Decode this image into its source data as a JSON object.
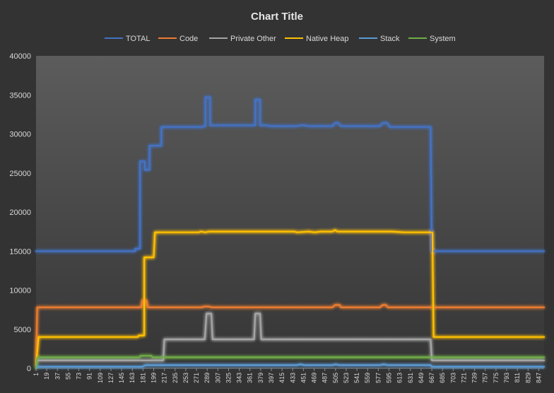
{
  "chart_data": {
    "type": "line",
    "title": "Chart Title",
    "legend_position": "top",
    "grid": false,
    "ylim": [
      0,
      40000
    ],
    "xlim": [
      1,
      856
    ],
    "y_ticks": [
      0,
      5000,
      10000,
      15000,
      20000,
      25000,
      30000,
      35000,
      40000
    ],
    "x_ticks": [
      1,
      19,
      37,
      55,
      73,
      91,
      109,
      127,
      145,
      163,
      181,
      199,
      217,
      235,
      253,
      271,
      289,
      307,
      325,
      343,
      361,
      379,
      397,
      415,
      433,
      451,
      469,
      487,
      505,
      523,
      541,
      559,
      577,
      595,
      613,
      631,
      649,
      667,
      685,
      703,
      721,
      739,
      757,
      775,
      793,
      811,
      829,
      847
    ],
    "series": [
      {
        "name": "TOTAL",
        "color": "#4472c4",
        "points": [
          [
            1,
            15000
          ],
          [
            168,
            15000
          ],
          [
            168,
            15300
          ],
          [
            176,
            15300
          ],
          [
            176,
            26500
          ],
          [
            184,
            26500
          ],
          [
            184,
            25400
          ],
          [
            192,
            25400
          ],
          [
            192,
            28500
          ],
          [
            212,
            28500
          ],
          [
            212,
            30900
          ],
          [
            280,
            30900
          ],
          [
            286,
            31000
          ],
          [
            286,
            34700
          ],
          [
            294,
            34700
          ],
          [
            294,
            31100
          ],
          [
            370,
            31100
          ],
          [
            370,
            34400
          ],
          [
            378,
            34400
          ],
          [
            378,
            31100
          ],
          [
            390,
            31100
          ],
          [
            394,
            31000
          ],
          [
            440,
            31000
          ],
          [
            446,
            31100
          ],
          [
            452,
            31100
          ],
          [
            460,
            31000
          ],
          [
            500,
            31000
          ],
          [
            504,
            31400
          ],
          [
            510,
            31400
          ],
          [
            514,
            31000
          ],
          [
            580,
            31000
          ],
          [
            584,
            31400
          ],
          [
            592,
            31400
          ],
          [
            596,
            30900
          ],
          [
            665,
            30900
          ],
          [
            667,
            15000
          ],
          [
            856,
            15000
          ]
        ]
      },
      {
        "name": "Code",
        "color": "#ed7d31",
        "points": [
          [
            1,
            200
          ],
          [
            3,
            7800
          ],
          [
            178,
            7800
          ],
          [
            180,
            8700
          ],
          [
            187,
            8700
          ],
          [
            189,
            7800
          ],
          [
            280,
            7800
          ],
          [
            284,
            7900
          ],
          [
            292,
            7900
          ],
          [
            296,
            7800
          ],
          [
            500,
            7800
          ],
          [
            504,
            8100
          ],
          [
            512,
            8100
          ],
          [
            514,
            7800
          ],
          [
            580,
            7800
          ],
          [
            584,
            8100
          ],
          [
            590,
            8100
          ],
          [
            593,
            7800
          ],
          [
            856,
            7800
          ]
        ]
      },
      {
        "name": "Private Other",
        "color": "#a5a5a5",
        "points": [
          [
            1,
            0
          ],
          [
            3,
            1000
          ],
          [
            215,
            1000
          ],
          [
            217,
            3700
          ],
          [
            285,
            3700
          ],
          [
            288,
            7000
          ],
          [
            296,
            7000
          ],
          [
            298,
            3700
          ],
          [
            368,
            3700
          ],
          [
            370,
            7000
          ],
          [
            378,
            7000
          ],
          [
            380,
            3700
          ],
          [
            665,
            3700
          ],
          [
            667,
            1000
          ],
          [
            856,
            1000
          ]
        ]
      },
      {
        "name": "Native Heap",
        "color": "#ffc000",
        "points": [
          [
            1,
            400
          ],
          [
            5,
            4000
          ],
          [
            172,
            4000
          ],
          [
            174,
            4200
          ],
          [
            183,
            4200
          ],
          [
            183,
            14200
          ],
          [
            199,
            14200
          ],
          [
            201,
            17400
          ],
          [
            275,
            17400
          ],
          [
            278,
            17500
          ],
          [
            286,
            17400
          ],
          [
            292,
            17500
          ],
          [
            436,
            17500
          ],
          [
            440,
            17400
          ],
          [
            460,
            17500
          ],
          [
            470,
            17400
          ],
          [
            480,
            17500
          ],
          [
            500,
            17500
          ],
          [
            504,
            17700
          ],
          [
            508,
            17500
          ],
          [
            600,
            17500
          ],
          [
            620,
            17400
          ],
          [
            668,
            17400
          ],
          [
            670,
            4000
          ],
          [
            856,
            4000
          ]
        ]
      },
      {
        "name": "Stack",
        "color": "#5b9bd5",
        "points": [
          [
            1,
            0
          ],
          [
            3,
            200
          ],
          [
            180,
            200
          ],
          [
            185,
            400
          ],
          [
            440,
            400
          ],
          [
            446,
            500
          ],
          [
            452,
            400
          ],
          [
            500,
            400
          ],
          [
            506,
            500
          ],
          [
            510,
            400
          ],
          [
            580,
            400
          ],
          [
            586,
            500
          ],
          [
            592,
            400
          ],
          [
            665,
            400
          ],
          [
            667,
            200
          ],
          [
            856,
            200
          ]
        ]
      },
      {
        "name": "System",
        "color": "#70ad47",
        "points": [
          [
            1,
            0
          ],
          [
            3,
            1400
          ],
          [
            175,
            1400
          ],
          [
            177,
            1600
          ],
          [
            195,
            1600
          ],
          [
            197,
            1400
          ],
          [
            856,
            1400
          ]
        ]
      }
    ]
  }
}
